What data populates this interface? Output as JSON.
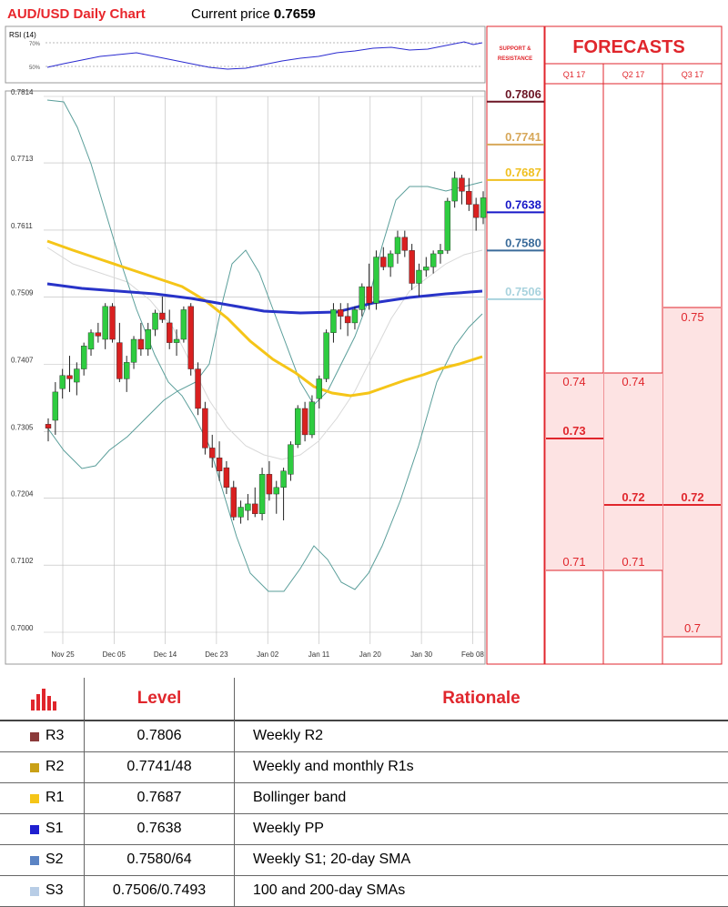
{
  "header": {
    "title": "AUD/USD Daily Chart",
    "price_label": "Current price",
    "price_value": "0.7659"
  },
  "chart_data": {
    "type": "candlestick",
    "price_axis": {
      "ticks": [
        "0.7814",
        "0.7713",
        "0.7611",
        "0.7509",
        "0.7407",
        "0.7305",
        "0.7204",
        "0.7102",
        "0.7000"
      ],
      "ylim": [
        0.7,
        0.7814
      ]
    },
    "x_ticks": [
      "Nov 25",
      "Dec 05",
      "Dec 14",
      "Dec 23",
      "Jan 02",
      "Jan 11",
      "Jan 20",
      "Jan 30",
      "Feb 08"
    ],
    "rsi": {
      "label": "RSI (14)",
      "levels": [
        "70%",
        "50%"
      ],
      "ylim": [
        40,
        80
      ]
    },
    "candles": [
      [
        0.7316,
        0.7325,
        0.729,
        0.731
      ],
      [
        0.7322,
        0.738,
        0.73,
        0.7365
      ],
      [
        0.737,
        0.74,
        0.7355,
        0.739
      ],
      [
        0.739,
        0.742,
        0.7365,
        0.7385
      ],
      [
        0.738,
        0.741,
        0.736,
        0.74
      ],
      [
        0.74,
        0.744,
        0.739,
        0.7435
      ],
      [
        0.743,
        0.746,
        0.742,
        0.7455
      ],
      [
        0.7455,
        0.747,
        0.744,
        0.745
      ],
      [
        0.7445,
        0.75,
        0.743,
        0.7495
      ],
      [
        0.7495,
        0.75,
        0.744,
        0.7445
      ],
      [
        0.744,
        0.747,
        0.738,
        0.7385
      ],
      [
        0.7385,
        0.742,
        0.7365,
        0.741
      ],
      [
        0.741,
        0.745,
        0.74,
        0.7445
      ],
      [
        0.7445,
        0.747,
        0.742,
        0.743
      ],
      [
        0.743,
        0.747,
        0.742,
        0.746
      ],
      [
        0.746,
        0.749,
        0.745,
        0.7485
      ],
      [
        0.7485,
        0.751,
        0.747,
        0.7475
      ],
      [
        0.747,
        0.749,
        0.743,
        0.744
      ],
      [
        0.744,
        0.746,
        0.742,
        0.7445
      ],
      [
        0.7445,
        0.7495,
        0.744,
        0.749
      ],
      [
        0.7495,
        0.75,
        0.739,
        0.74
      ],
      [
        0.74,
        0.741,
        0.733,
        0.734
      ],
      [
        0.734,
        0.735,
        0.727,
        0.728
      ],
      [
        0.728,
        0.73,
        0.725,
        0.7265
      ],
      [
        0.7265,
        0.729,
        0.723,
        0.7245
      ],
      [
        0.725,
        0.726,
        0.721,
        0.722
      ],
      [
        0.722,
        0.723,
        0.717,
        0.7175
      ],
      [
        0.7175,
        0.72,
        0.7165,
        0.719
      ],
      [
        0.7185,
        0.721,
        0.717,
        0.7195
      ],
      [
        0.7195,
        0.722,
        0.7175,
        0.718
      ],
      [
        0.718,
        0.725,
        0.717,
        0.724
      ],
      [
        0.724,
        0.726,
        0.72,
        0.721
      ],
      [
        0.721,
        0.723,
        0.718,
        0.722
      ],
      [
        0.722,
        0.725,
        0.717,
        0.7245
      ],
      [
        0.724,
        0.729,
        0.723,
        0.7285
      ],
      [
        0.7285,
        0.7345,
        0.728,
        0.734
      ],
      [
        0.734,
        0.735,
        0.729,
        0.73
      ],
      [
        0.73,
        0.736,
        0.7295,
        0.735
      ],
      [
        0.7355,
        0.739,
        0.734,
        0.7385
      ],
      [
        0.7385,
        0.746,
        0.738,
        0.7455
      ],
      [
        0.7455,
        0.75,
        0.744,
        0.749
      ],
      [
        0.749,
        0.75,
        0.746,
        0.748
      ],
      [
        0.748,
        0.75,
        0.745,
        0.747
      ],
      [
        0.747,
        0.7495,
        0.746,
        0.749
      ],
      [
        0.749,
        0.753,
        0.748,
        0.7525
      ],
      [
        0.7525,
        0.756,
        0.749,
        0.75
      ],
      [
        0.75,
        0.758,
        0.749,
        0.757
      ],
      [
        0.757,
        0.7585,
        0.755,
        0.7555
      ],
      [
        0.7555,
        0.758,
        0.754,
        0.7575
      ],
      [
        0.7575,
        0.761,
        0.756,
        0.76
      ],
      [
        0.76,
        0.761,
        0.757,
        0.758
      ],
      [
        0.758,
        0.759,
        0.752,
        0.753
      ],
      [
        0.753,
        0.756,
        0.751,
        0.755
      ],
      [
        0.755,
        0.757,
        0.754,
        0.7555
      ],
      [
        0.7555,
        0.758,
        0.7545,
        0.7575
      ],
      [
        0.7575,
        0.759,
        0.756,
        0.758
      ],
      [
        0.758,
        0.766,
        0.7575,
        0.7655
      ],
      [
        0.7655,
        0.77,
        0.7645,
        0.769
      ],
      [
        0.769,
        0.7695,
        0.765,
        0.767
      ],
      [
        0.767,
        0.769,
        0.764,
        0.765
      ],
      [
        0.765,
        0.766,
        0.761,
        0.763
      ],
      [
        0.763,
        0.767,
        0.762,
        0.766
      ]
    ],
    "colors": {
      "up": "#2ecc40",
      "down": "#d92020",
      "sma100": "#2833c8",
      "sma200": "#f5c518",
      "bollinger": "#5a9e9a",
      "sma20": "#d8d8d8"
    }
  },
  "sr_levels": [
    {
      "value": "0.7806",
      "color": "#6b1524"
    },
    {
      "value": "0.7741",
      "color": "#d7a85a"
    },
    {
      "value": "0.7687",
      "color": "#f0c020"
    },
    {
      "value": "0.7638",
      "color": "#1818c8"
    },
    {
      "value": "0.7580",
      "color": "#3a6b9a"
    },
    {
      "value": "0.7506",
      "color": "#a9d3de"
    }
  ],
  "forecasts": {
    "title": "FORECASTS",
    "sr_header": [
      "SUPPORT &",
      "RESISTANCE"
    ],
    "quarters": [
      "Q1 17",
      "Q2 17",
      "Q3 17"
    ],
    "q1": {
      "high": "0.74",
      "mid": "0.73",
      "low": "0.71"
    },
    "q2": {
      "high": "0.74",
      "mid": "0.72",
      "low": "0.71"
    },
    "q3": {
      "high": "0.75",
      "mid": "0.72",
      "low": "0.7"
    }
  },
  "table": {
    "headers": {
      "level": "Level",
      "rationale": "Rationale"
    },
    "rows": [
      {
        "label": "R3",
        "level": "0.7806",
        "rationale": "Weekly R2",
        "color": "#8b3a3a"
      },
      {
        "label": "R2",
        "level": "0.7741/48",
        "rationale": "Weekly and monthly R1s",
        "color": "#c9a016"
      },
      {
        "label": "R1",
        "level": "0.7687",
        "rationale": "Bollinger band",
        "color": "#f5c518"
      },
      {
        "label": "S1",
        "level": "0.7638",
        "rationale": "Weekly PP",
        "color": "#1f1fd0"
      },
      {
        "label": "S2",
        "level": "0.7580/64",
        "rationale": "Weekly S1; 20-day SMA",
        "color": "#5b84c4"
      },
      {
        "label": "S3",
        "level": "0.7506/0.7493",
        "rationale": "100 and 200-day SMAs",
        "color": "#b8cde6"
      }
    ]
  }
}
